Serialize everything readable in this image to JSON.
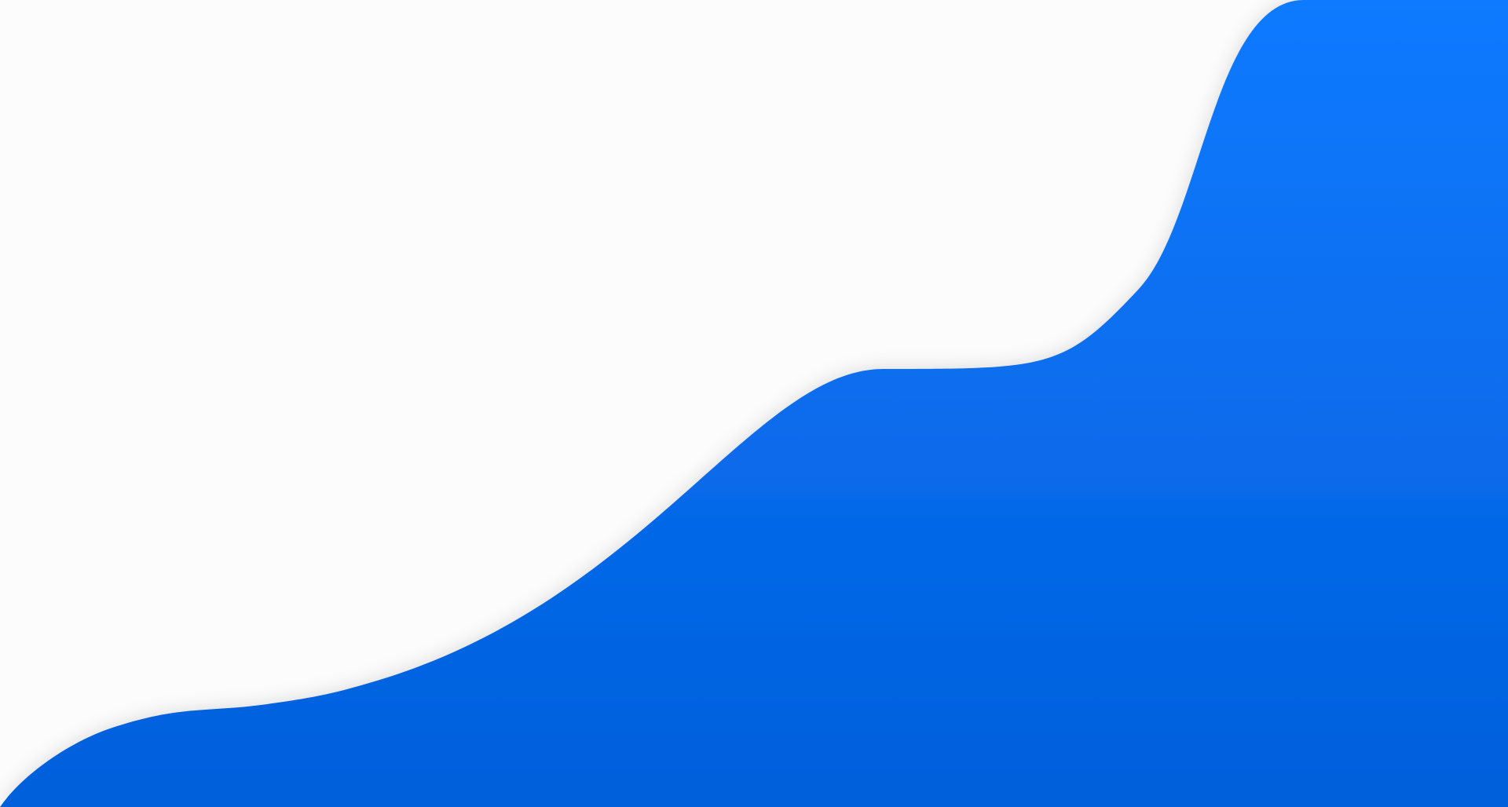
{
  "page": {
    "background_color": "#fcfcfc",
    "wave": {
      "color_top": "#117aff",
      "color_bottom": "#005fdb",
      "shadow_color": "#000000"
    }
  }
}
